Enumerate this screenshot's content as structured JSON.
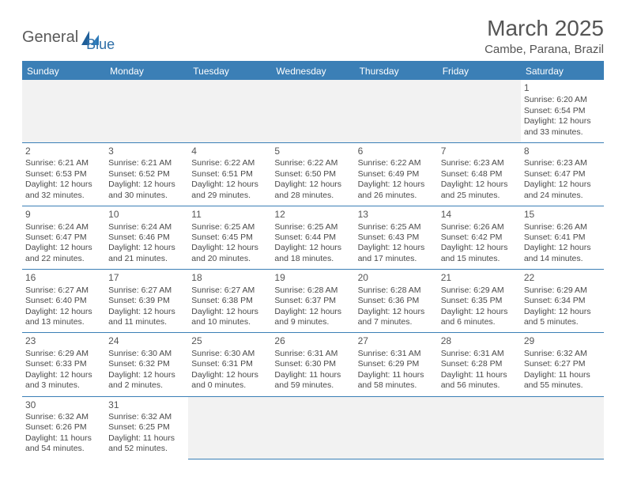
{
  "logo": {
    "word1": "General",
    "word2": "Blue"
  },
  "title": "March 2025",
  "location": "Cambe, Parana, Brazil",
  "colors": {
    "header_bg": "#3b7fb6",
    "header_text": "#ffffff",
    "border": "#3b7fb6",
    "blank_bg": "#f2f2f2",
    "body_text": "#4a4a4a",
    "title_text": "#555555",
    "logo_gray": "#5a5a5a",
    "logo_blue": "#2f6fa8"
  },
  "days_of_week": [
    "Sunday",
    "Monday",
    "Tuesday",
    "Wednesday",
    "Thursday",
    "Friday",
    "Saturday"
  ],
  "weeks": [
    [
      null,
      null,
      null,
      null,
      null,
      null,
      {
        "n": "1",
        "sunrise": "Sunrise: 6:20 AM",
        "sunset": "Sunset: 6:54 PM",
        "daylight": "Daylight: 12 hours and 33 minutes."
      }
    ],
    [
      {
        "n": "2",
        "sunrise": "Sunrise: 6:21 AM",
        "sunset": "Sunset: 6:53 PM",
        "daylight": "Daylight: 12 hours and 32 minutes."
      },
      {
        "n": "3",
        "sunrise": "Sunrise: 6:21 AM",
        "sunset": "Sunset: 6:52 PM",
        "daylight": "Daylight: 12 hours and 30 minutes."
      },
      {
        "n": "4",
        "sunrise": "Sunrise: 6:22 AM",
        "sunset": "Sunset: 6:51 PM",
        "daylight": "Daylight: 12 hours and 29 minutes."
      },
      {
        "n": "5",
        "sunrise": "Sunrise: 6:22 AM",
        "sunset": "Sunset: 6:50 PM",
        "daylight": "Daylight: 12 hours and 28 minutes."
      },
      {
        "n": "6",
        "sunrise": "Sunrise: 6:22 AM",
        "sunset": "Sunset: 6:49 PM",
        "daylight": "Daylight: 12 hours and 26 minutes."
      },
      {
        "n": "7",
        "sunrise": "Sunrise: 6:23 AM",
        "sunset": "Sunset: 6:48 PM",
        "daylight": "Daylight: 12 hours and 25 minutes."
      },
      {
        "n": "8",
        "sunrise": "Sunrise: 6:23 AM",
        "sunset": "Sunset: 6:47 PM",
        "daylight": "Daylight: 12 hours and 24 minutes."
      }
    ],
    [
      {
        "n": "9",
        "sunrise": "Sunrise: 6:24 AM",
        "sunset": "Sunset: 6:47 PM",
        "daylight": "Daylight: 12 hours and 22 minutes."
      },
      {
        "n": "10",
        "sunrise": "Sunrise: 6:24 AM",
        "sunset": "Sunset: 6:46 PM",
        "daylight": "Daylight: 12 hours and 21 minutes."
      },
      {
        "n": "11",
        "sunrise": "Sunrise: 6:25 AM",
        "sunset": "Sunset: 6:45 PM",
        "daylight": "Daylight: 12 hours and 20 minutes."
      },
      {
        "n": "12",
        "sunrise": "Sunrise: 6:25 AM",
        "sunset": "Sunset: 6:44 PM",
        "daylight": "Daylight: 12 hours and 18 minutes."
      },
      {
        "n": "13",
        "sunrise": "Sunrise: 6:25 AM",
        "sunset": "Sunset: 6:43 PM",
        "daylight": "Daylight: 12 hours and 17 minutes."
      },
      {
        "n": "14",
        "sunrise": "Sunrise: 6:26 AM",
        "sunset": "Sunset: 6:42 PM",
        "daylight": "Daylight: 12 hours and 15 minutes."
      },
      {
        "n": "15",
        "sunrise": "Sunrise: 6:26 AM",
        "sunset": "Sunset: 6:41 PM",
        "daylight": "Daylight: 12 hours and 14 minutes."
      }
    ],
    [
      {
        "n": "16",
        "sunrise": "Sunrise: 6:27 AM",
        "sunset": "Sunset: 6:40 PM",
        "daylight": "Daylight: 12 hours and 13 minutes."
      },
      {
        "n": "17",
        "sunrise": "Sunrise: 6:27 AM",
        "sunset": "Sunset: 6:39 PM",
        "daylight": "Daylight: 12 hours and 11 minutes."
      },
      {
        "n": "18",
        "sunrise": "Sunrise: 6:27 AM",
        "sunset": "Sunset: 6:38 PM",
        "daylight": "Daylight: 12 hours and 10 minutes."
      },
      {
        "n": "19",
        "sunrise": "Sunrise: 6:28 AM",
        "sunset": "Sunset: 6:37 PM",
        "daylight": "Daylight: 12 hours and 9 minutes."
      },
      {
        "n": "20",
        "sunrise": "Sunrise: 6:28 AM",
        "sunset": "Sunset: 6:36 PM",
        "daylight": "Daylight: 12 hours and 7 minutes."
      },
      {
        "n": "21",
        "sunrise": "Sunrise: 6:29 AM",
        "sunset": "Sunset: 6:35 PM",
        "daylight": "Daylight: 12 hours and 6 minutes."
      },
      {
        "n": "22",
        "sunrise": "Sunrise: 6:29 AM",
        "sunset": "Sunset: 6:34 PM",
        "daylight": "Daylight: 12 hours and 5 minutes."
      }
    ],
    [
      {
        "n": "23",
        "sunrise": "Sunrise: 6:29 AM",
        "sunset": "Sunset: 6:33 PM",
        "daylight": "Daylight: 12 hours and 3 minutes."
      },
      {
        "n": "24",
        "sunrise": "Sunrise: 6:30 AM",
        "sunset": "Sunset: 6:32 PM",
        "daylight": "Daylight: 12 hours and 2 minutes."
      },
      {
        "n": "25",
        "sunrise": "Sunrise: 6:30 AM",
        "sunset": "Sunset: 6:31 PM",
        "daylight": "Daylight: 12 hours and 0 minutes."
      },
      {
        "n": "26",
        "sunrise": "Sunrise: 6:31 AM",
        "sunset": "Sunset: 6:30 PM",
        "daylight": "Daylight: 11 hours and 59 minutes."
      },
      {
        "n": "27",
        "sunrise": "Sunrise: 6:31 AM",
        "sunset": "Sunset: 6:29 PM",
        "daylight": "Daylight: 11 hours and 58 minutes."
      },
      {
        "n": "28",
        "sunrise": "Sunrise: 6:31 AM",
        "sunset": "Sunset: 6:28 PM",
        "daylight": "Daylight: 11 hours and 56 minutes."
      },
      {
        "n": "29",
        "sunrise": "Sunrise: 6:32 AM",
        "sunset": "Sunset: 6:27 PM",
        "daylight": "Daylight: 11 hours and 55 minutes."
      }
    ],
    [
      {
        "n": "30",
        "sunrise": "Sunrise: 6:32 AM",
        "sunset": "Sunset: 6:26 PM",
        "daylight": "Daylight: 11 hours and 54 minutes."
      },
      {
        "n": "31",
        "sunrise": "Sunrise: 6:32 AM",
        "sunset": "Sunset: 6:25 PM",
        "daylight": "Daylight: 11 hours and 52 minutes."
      },
      null,
      null,
      null,
      null,
      null
    ]
  ]
}
